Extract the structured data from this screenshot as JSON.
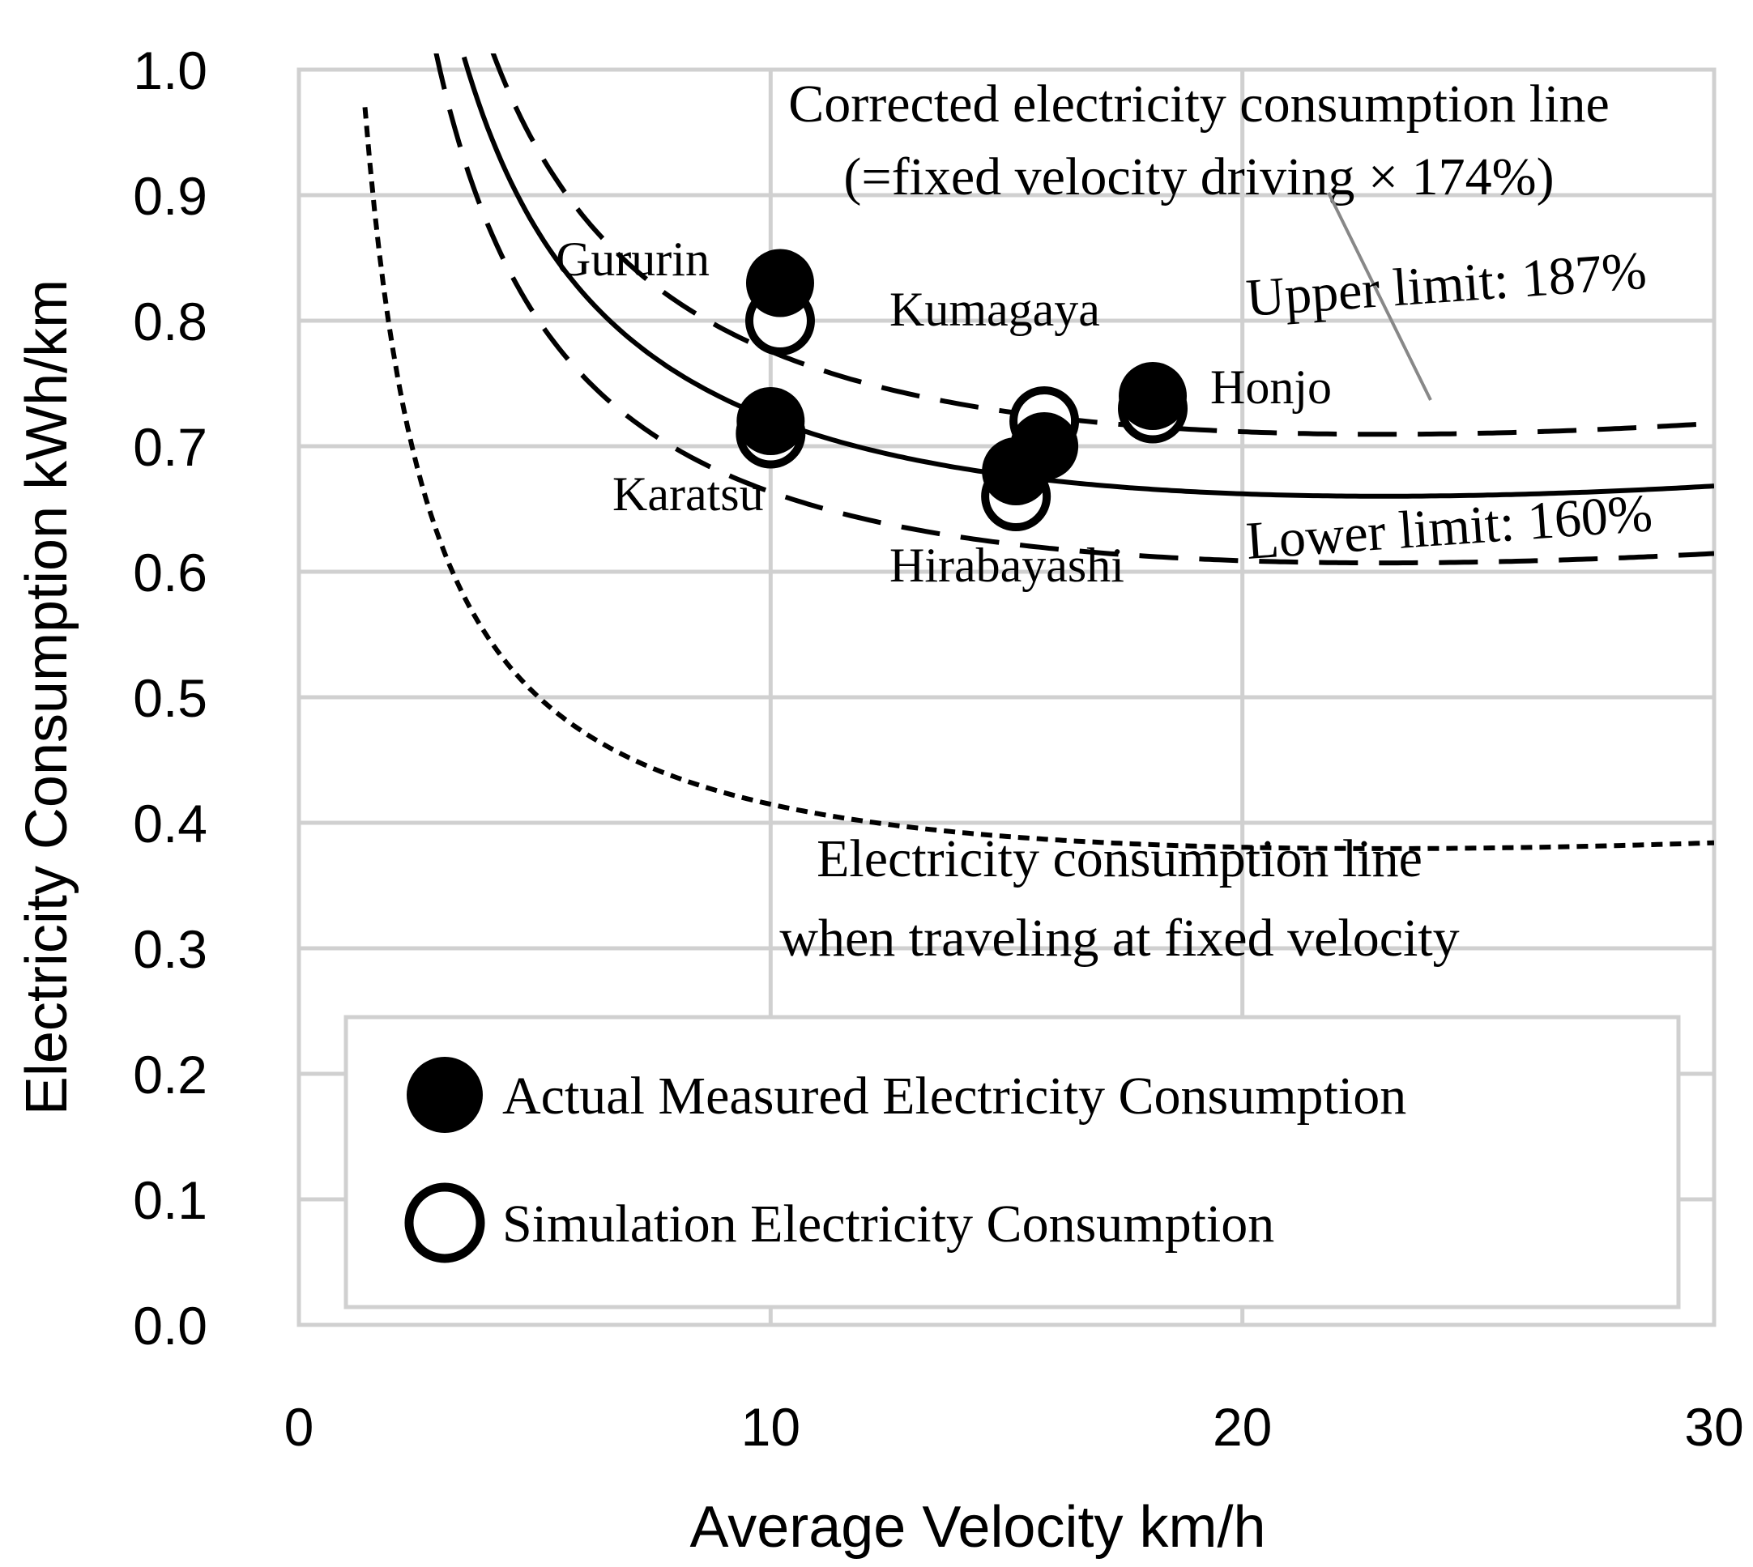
{
  "chart_data": {
    "type": "scatter",
    "xlabel": "Average Velocity  km/h",
    "ylabel": "Electricity Consumption  kWh/km",
    "xlim": [
      0,
      30
    ],
    "ylim": [
      0.0,
      1.0
    ],
    "x_ticks": [
      "0",
      "10",
      "20",
      "30"
    ],
    "y_ticks": [
      "0.0",
      "0.1",
      "0.2",
      "0.3",
      "0.4",
      "0.5",
      "0.6",
      "0.7",
      "0.8",
      "0.9",
      "1.0"
    ],
    "grid": true,
    "annotations": {
      "corrected_line_1": "Corrected electricity consumption line",
      "corrected_line_2": "(=fixed velocity driving × 174%)",
      "upper_limit": "Upper limit: 187%",
      "lower_limit": "Lower limit: 160%",
      "fixed_line_1": "Electricity consumption line",
      "fixed_line_2": "when traveling at fixed velocity"
    },
    "legend": {
      "placement": "bottom",
      "measured": "Actual Measured Electricity Consumption",
      "simulation": "Simulation Electricity Consumption"
    },
    "points": [
      {
        "label": "Gururin",
        "x": 10.2,
        "measured": 0.83,
        "simulation": 0.8
      },
      {
        "label": "Karatsu",
        "x": 10.0,
        "measured": 0.72,
        "simulation": 0.71
      },
      {
        "label": "Kumagaya",
        "x": 15.8,
        "measured": 0.7,
        "simulation": 0.72
      },
      {
        "label": "Hirabayashi",
        "x": 15.2,
        "measured": 0.68,
        "simulation": 0.66
      },
      {
        "label": "Honjo",
        "x": 18.1,
        "measured": 0.74,
        "simulation": 0.73
      }
    ],
    "curves": [
      {
        "name": "fixed",
        "style": "dotted",
        "multiplier": 1.0
      },
      {
        "name": "lower",
        "style": "dashed",
        "multiplier": 1.6
      },
      {
        "name": "corrected",
        "style": "solid",
        "multiplier": 1.74
      },
      {
        "name": "upper",
        "style": "dashed",
        "multiplier": 1.87
      }
    ],
    "base_curve_coefficients": {
      "a": 0.91,
      "b": 0.32,
      "c": 3.75e-05
    }
  }
}
